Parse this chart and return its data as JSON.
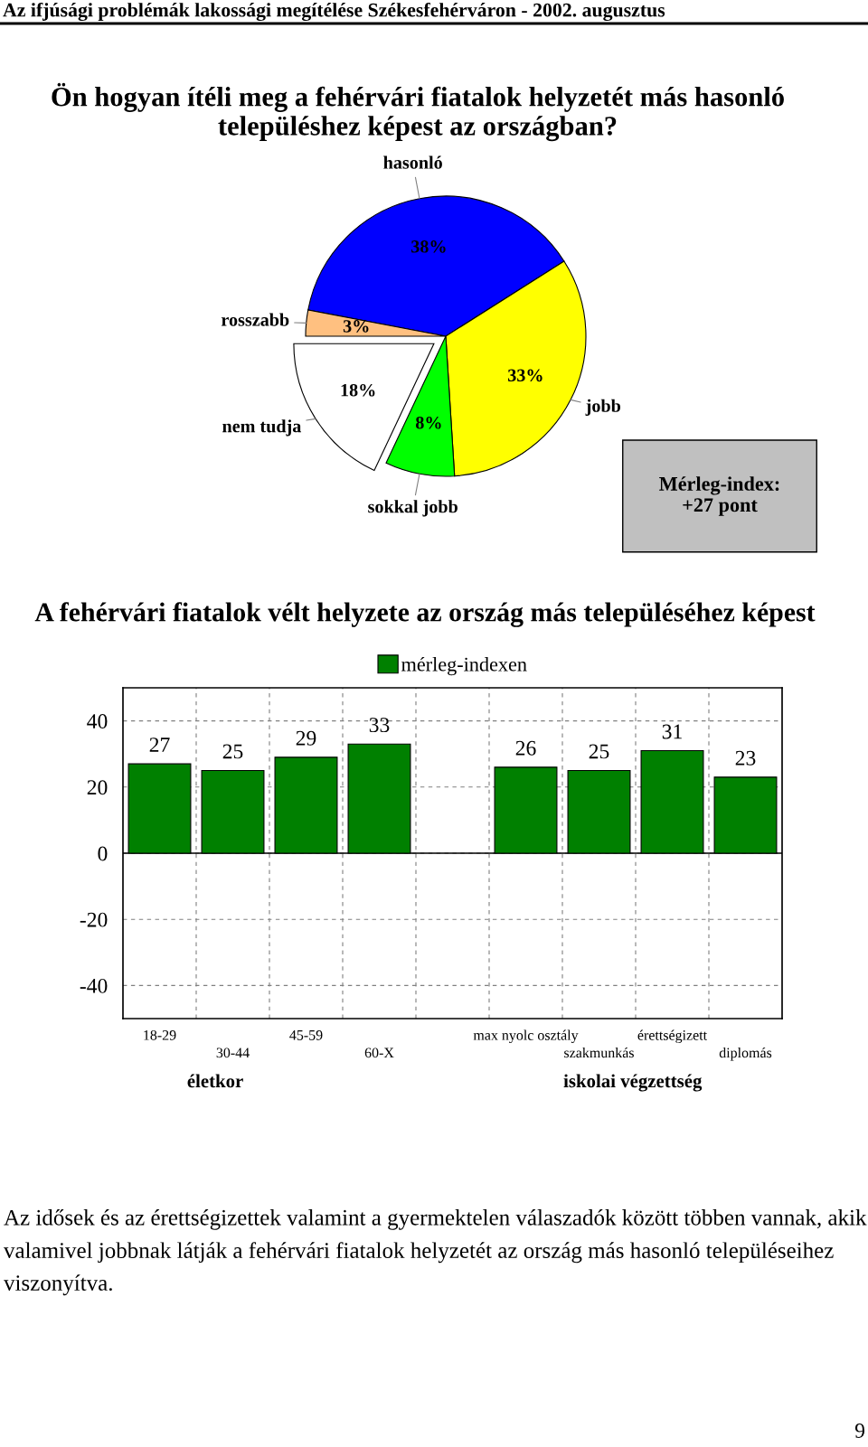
{
  "chart_data": [
    {
      "type": "pie",
      "title": "Ön hogyan ítéli meg a fehérvári fiatalok helyzetét más hasonló\ntelepüléshez képest az országban?",
      "categories": [
        "hasonló",
        "jobb",
        "sokkal jobb",
        "nem tudja",
        "rosszabb"
      ],
      "values": [
        38,
        33,
        8,
        18,
        3
      ],
      "value_labels": [
        "38%",
        "33%",
        "8%",
        "18%",
        "3%"
      ],
      "colors": [
        "#0000ff",
        "#ffff00",
        "#00ff00",
        "#ffffff",
        "#ffc080"
      ],
      "annotations": [
        "Az ifjúsági problémák lakossági megítélése Székesfehérváron - 2002. augusztus",
        "Mérleg-index:\n+27 pont"
      ]
    },
    {
      "type": "bar",
      "title": "A fehérvári fiatalok vélt helyzete az ország más településéhez képest",
      "categories": [
        "18-29",
        "30-44",
        "45-59",
        "60-X",
        null,
        "max nyolc osztály",
        "szakmunkás",
        "érettségizett",
        "diplomás"
      ],
      "series": [
        {
          "name": "mérleg-indexen",
          "color": "#008000",
          "values": [
            27,
            25,
            29,
            33,
            null,
            26,
            25,
            31,
            23
          ]
        }
      ],
      "ylim": [
        -50,
        50
      ],
      "yticks": [
        -40,
        -20,
        0,
        20,
        40
      ],
      "grid": true,
      "legend": "top",
      "data_labels": true,
      "annotations": [
        "életkor",
        "iskolai végzettség",
        "Az idősek és az érettségizettek valamint a gyermektelen válaszadók között többen vannak, akik valamivel jobbnak látják a fehérvári fiatalok helyzetét az ország más hasonló településeihez viszonyítva.",
        "9"
      ]
    }
  ]
}
